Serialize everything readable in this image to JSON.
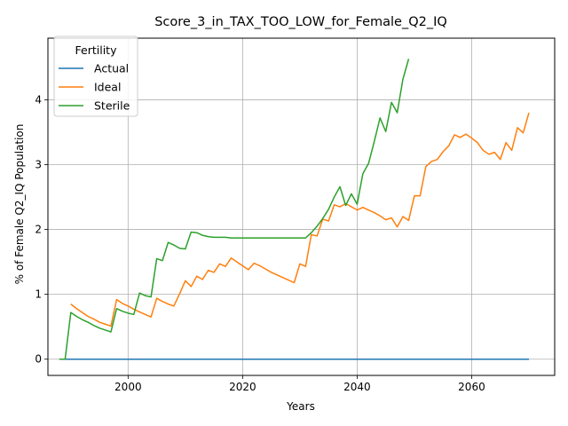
{
  "chart_data": {
    "type": "line",
    "title": "Score_3_in_TAX_TOO_LOW_for_Female_Q2_IQ",
    "xlabel": "Years",
    "ylabel": "% of Female Q2_IQ Population",
    "xlim": [
      1986,
      2074.5
    ],
    "ylim": [
      -0.25,
      4.95
    ],
    "xticks": [
      2000,
      2020,
      2040,
      2060
    ],
    "yticks": [
      0,
      1,
      2,
      3,
      4
    ],
    "grid": true,
    "legend": {
      "title": "Fertility",
      "placement": "top-left"
    },
    "series": [
      {
        "name": "Actual",
        "color": "#1f77b4",
        "x": [
          1988,
          2070
        ],
        "y": [
          0,
          0
        ]
      },
      {
        "name": "Ideal",
        "color": "#ff7f0e",
        "x": [
          1990,
          1991,
          1992,
          1993,
          1994,
          1995,
          1996,
          1997,
          1998,
          1999,
          2000,
          2001,
          2002,
          2003,
          2004,
          2005,
          2006,
          2007,
          2008,
          2009,
          2010,
          2011,
          2012,
          2013,
          2014,
          2015,
          2016,
          2017,
          2018,
          2019,
          2020,
          2021,
          2022,
          2023,
          2024,
          2025,
          2026,
          2027,
          2028,
          2029,
          2030,
          2031,
          2032,
          2033,
          2034,
          2035,
          2036,
          2037,
          2038,
          2039,
          2040,
          2041,
          2042,
          2043,
          2044,
          2045,
          2046,
          2047,
          2048,
          2049,
          2050,
          2051,
          2052,
          2053,
          2054,
          2055,
          2056,
          2057,
          2058,
          2059,
          2060,
          2061,
          2062,
          2063,
          2064,
          2065,
          2066,
          2067,
          2068,
          2069,
          2070
        ],
        "y": [
          0.85,
          0.78,
          0.72,
          0.66,
          0.62,
          0.57,
          0.54,
          0.51,
          0.92,
          0.86,
          0.82,
          0.77,
          0.73,
          0.69,
          0.65,
          0.94,
          0.89,
          0.85,
          0.82,
          1.01,
          1.21,
          1.12,
          1.28,
          1.23,
          1.37,
          1.34,
          1.47,
          1.43,
          1.56,
          1.5,
          1.44,
          1.38,
          1.48,
          1.44,
          1.39,
          1.34,
          1.3,
          1.26,
          1.22,
          1.18,
          1.47,
          1.43,
          1.92,
          1.9,
          2.16,
          2.13,
          2.38,
          2.35,
          2.4,
          2.35,
          2.3,
          2.34,
          2.3,
          2.26,
          2.21,
          2.15,
          2.18,
          2.04,
          2.2,
          2.14,
          2.52,
          2.52,
          2.97,
          3.05,
          3.08,
          3.2,
          3.29,
          3.46,
          3.42,
          3.47,
          3.41,
          3.34,
          3.22,
          3.16,
          3.19,
          3.08,
          3.34,
          3.22,
          3.57,
          3.49,
          3.8
        ]
      },
      {
        "name": "Sterile",
        "color": "#2ca02c",
        "x": [
          1988,
          1989,
          1990,
          1991,
          1992,
          1993,
          1994,
          1995,
          1996,
          1997,
          1998,
          1999,
          2000,
          2001,
          2002,
          2003,
          2004,
          2005,
          2006,
          2007,
          2008,
          2009,
          2010,
          2011,
          2012,
          2013,
          2014,
          2015,
          2016,
          2017,
          2018,
          2019,
          2020,
          2021,
          2022,
          2023,
          2024,
          2025,
          2026,
          2027,
          2028,
          2029,
          2030,
          2031,
          2032,
          2033,
          2034,
          2035,
          2036,
          2037,
          2038,
          2039,
          2040,
          2041,
          2042,
          2043,
          2044,
          2045,
          2046,
          2047,
          2048,
          2049
        ],
        "y": [
          0,
          0,
          0.72,
          0.66,
          0.61,
          0.57,
          0.52,
          0.48,
          0.45,
          0.42,
          0.78,
          0.74,
          0.71,
          0.69,
          1.02,
          0.98,
          0.96,
          1.55,
          1.52,
          1.8,
          1.76,
          1.71,
          1.7,
          1.96,
          1.95,
          1.91,
          1.89,
          1.88,
          1.88,
          1.88,
          1.87,
          1.87,
          1.87,
          1.87,
          1.87,
          1.87,
          1.87,
          1.87,
          1.87,
          1.87,
          1.87,
          1.87,
          1.87,
          1.87,
          1.95,
          2.05,
          2.17,
          2.31,
          2.5,
          2.66,
          2.37,
          2.55,
          2.39,
          2.86,
          3.02,
          3.36,
          3.72,
          3.51,
          3.96,
          3.8,
          4.32,
          4.63
        ]
      }
    ]
  }
}
